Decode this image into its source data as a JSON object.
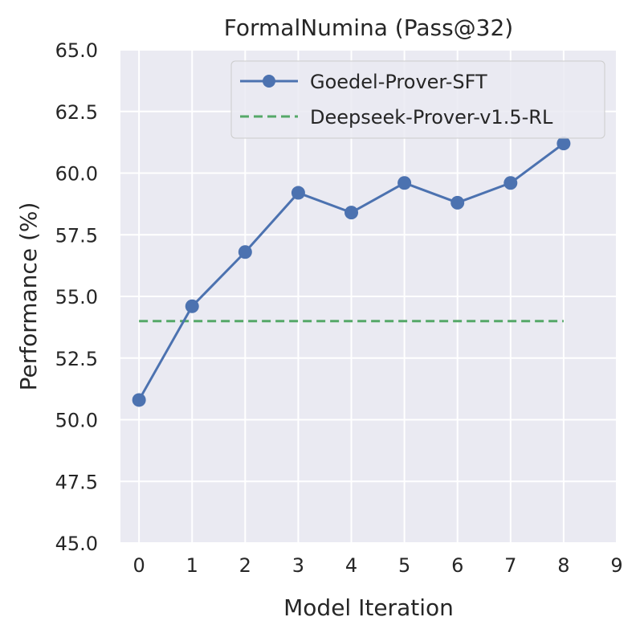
{
  "chart_data": {
    "type": "line",
    "title": "FormalNumina (Pass@32)",
    "xlabel": "Model Iteration",
    "ylabel": "Performance (%)",
    "xlim": [
      -0.35,
      9
    ],
    "ylim": [
      45.0,
      65.0
    ],
    "x_ticks": [
      0,
      1,
      2,
      3,
      4,
      5,
      6,
      7,
      8,
      9
    ],
    "y_ticks": [
      45.0,
      47.5,
      50.0,
      52.5,
      55.0,
      57.5,
      60.0,
      62.5,
      65.0
    ],
    "y_tick_labels": [
      "45.0",
      "47.5",
      "50.0",
      "52.5",
      "55.0",
      "57.5",
      "60.0",
      "62.5",
      "65.0"
    ],
    "grid": true,
    "legend_position": "top-right",
    "series": [
      {
        "name": "Goedel-Prover-SFT",
        "style": "solid-marker",
        "color": "#4c72b0",
        "x": [
          0,
          1,
          2,
          3,
          4,
          5,
          6,
          7,
          8
        ],
        "values": [
          50.8,
          54.6,
          56.8,
          59.2,
          58.4,
          59.6,
          58.8,
          59.6,
          61.2
        ]
      },
      {
        "name": "Deepseek-Prover-v1.5-RL",
        "style": "dashed",
        "color": "#55a868",
        "x": [
          0,
          8
        ],
        "values": [
          54.0,
          54.0
        ]
      }
    ]
  }
}
